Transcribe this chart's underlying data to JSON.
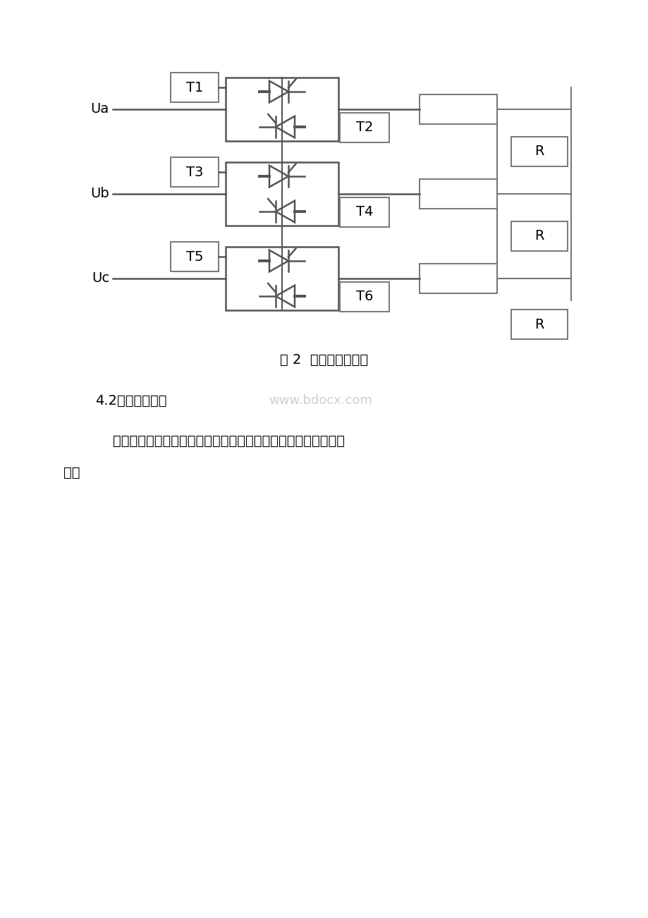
{
  "bg_color": "#ffffff",
  "line_color": "#555555",
  "box_color": "#777777",
  "text_color": "#000000",
  "title": "图 2  调压电路原理图",
  "heading": "4.2开环调压调速",
  "watermark": "www.bdocx.com",
  "body_text": "    开环系统的主电路由触发电路、调压电路、电机组成。原理图如",
  "body_text2": "下：",
  "ua_label": "Ua",
  "ub_label": "Ub",
  "uc_label": "Uc",
  "t1_label": "T1",
  "t2_label": "T2",
  "t3_label": "T3",
  "t4_label": "T4",
  "t5_label": "T5",
  "t6_label": "T6",
  "r_label": "R",
  "figsize": [
    9.2,
    13.02
  ],
  "dpi": 100
}
